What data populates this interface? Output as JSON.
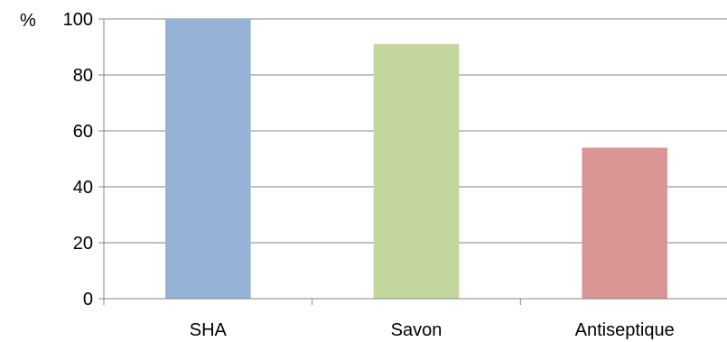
{
  "chart_data": {
    "type": "bar",
    "y_unit_label": "%",
    "categories": [
      "SHA",
      "Savon",
      "Antiseptique"
    ],
    "values": [
      100,
      91,
      54
    ],
    "colors": [
      "#95b3d7",
      "#c3d69b",
      "#d99694"
    ],
    "ylim": [
      0,
      100
    ],
    "yticks": [
      0,
      20,
      40,
      60,
      80,
      100
    ],
    "grid": true,
    "legend": "none"
  }
}
